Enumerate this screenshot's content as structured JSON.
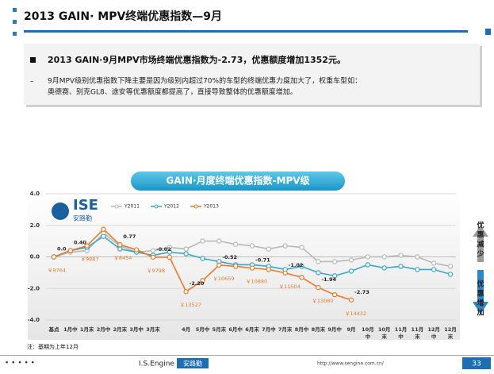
{
  "header": {
    "title": "2013 GAIN· MPV终端优惠指数—9月"
  },
  "summary": {
    "headline": "2013 GAIN·9月MPV市场终端优惠指数为-2.73，优惠额度增加1352元。",
    "detail_lines": [
      "9月MPV级别优惠指数下降主要是因为级别内超过70%的车型的终端优惠力度加大了，权重车型如：",
      "奥德赛、别克GL8、途安等优惠额度都提高了，直接导致整体的优惠额度增加。"
    ]
  },
  "chart_data": {
    "type": "line",
    "title": "GAIN·月度终端优惠指数-MPV级",
    "logo_text": "ISE",
    "logo_sub": "安路勤",
    "categories": [
      "基点",
      "1月中",
      "1月末",
      "2月中",
      "2月末",
      "3月中",
      "3月末",
      null,
      "4月",
      "5月中",
      "5月末",
      "6月中",
      "6月末",
      "7月中",
      "7月末",
      "8月中",
      "8月末",
      "9月中",
      "9月",
      "10月中",
      "10月末",
      "11月中",
      "11月末",
      "12月中",
      "12月末"
    ],
    "ylim": [
      -4,
      4
    ],
    "yticks": [
      {
        "value": 4,
        "label": "4.0"
      },
      {
        "value": 2,
        "label": "2.0"
      },
      {
        "value": 0,
        "label": "0.0"
      },
      {
        "value": -2,
        "label": "-2.0"
      },
      {
        "value": -4,
        "label": "-4.0"
      }
    ],
    "series": [
      {
        "name": "Y2011",
        "color": "#b8b8b8",
        "values": [
          0,
          0.3,
          0.4,
          1.5,
          0.7,
          0.3,
          0.4,
          0.6,
          0.5,
          1.0,
          1.0,
          0.8,
          0.7,
          0.5,
          0.7,
          0.6,
          -0.3,
          -0.3,
          -0.2,
          0.0,
          0.0,
          0.1,
          0.0,
          -0.4,
          -0.6
        ]
      },
      {
        "name": "Y2012",
        "color": "#3aa6c8",
        "values": [
          0,
          0.4,
          0.6,
          1.3,
          0.5,
          0.3,
          0.1,
          0.3,
          0.2,
          -0.1,
          -0.3,
          -0.5,
          -0.5,
          -0.6,
          -0.8,
          -0.6,
          -1.0,
          -1.2,
          -0.9,
          -0.5,
          -0.7,
          -0.6,
          -0.8,
          -0.8,
          -1.1
        ]
      },
      {
        "name": "Y2013",
        "color": "#e87a2c",
        "values": [
          0,
          0.4,
          0.7,
          1.75,
          0.77,
          0.45,
          -0.02,
          -0.02,
          -2.2,
          -1.5,
          -0.52,
          -0.6,
          -0.71,
          -0.8,
          -1.02,
          -1.3,
          -1.94,
          -2.4,
          -2.73,
          null,
          null,
          null,
          null,
          null,
          null
        ],
        "value_labels": [
          "0.0",
          "0.40",
          null,
          null,
          "0.77",
          null,
          "-0.02",
          null,
          "-2.20",
          null,
          "-0.52",
          null,
          "-0.71",
          null,
          "-1.02",
          null,
          "-1.94",
          null,
          "-2.73",
          null,
          null,
          null,
          null,
          null,
          null
        ],
        "price_labels": [
          "￥9764",
          null,
          "￥9887",
          null,
          "￥8454",
          null,
          "￥9798",
          null,
          "￥13527",
          null,
          "￥10659",
          null,
          "￥10880",
          null,
          "￥11504",
          null,
          "￥13080",
          null,
          "￥14432",
          null,
          null,
          null,
          null,
          null,
          null
        ]
      }
    ],
    "up_note": "优惠减少",
    "down_note": "优惠增加",
    "footnote": "注：基期为上年12月"
  },
  "footer": {
    "brand": "I.S.Engine",
    "brand_cn": "安路勤",
    "url": "http://www.sengine.com.cn/",
    "page": "33"
  }
}
